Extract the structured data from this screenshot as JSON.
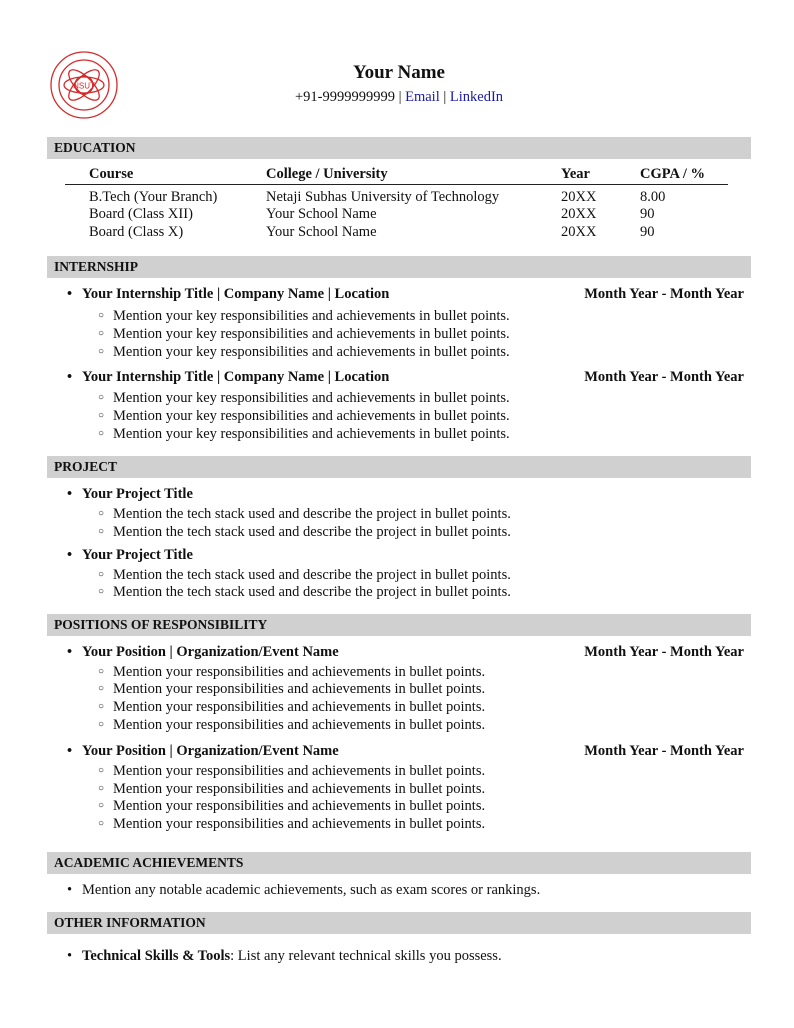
{
  "header": {
    "name": "Your Name",
    "phone": "+91-9999999999",
    "sep": "|",
    "email": "Email",
    "linkedin": "LinkedIn",
    "logo_text": "NSUT"
  },
  "education": {
    "title": "EDUCATION",
    "columns": [
      "Course",
      "College / University",
      "Year",
      "CGPA / %"
    ],
    "rows": [
      [
        "B.Tech (Your Branch)",
        "Netaji Subhas University of Technology",
        "20XX",
        "8.00"
      ],
      [
        "Board (Class XII)",
        "Your School Name",
        "20XX",
        "90"
      ],
      [
        "Board (Class X)",
        "Your School Name",
        "20XX",
        "90"
      ]
    ]
  },
  "internship": {
    "title": "INTERNSHIP",
    "items": [
      {
        "heading": "Your Internship Title | Company Name | Location",
        "date": "Month Year - Month Year",
        "points": [
          "Mention your key responsibilities and achievements in bullet points.",
          "Mention your key responsibilities and achievements in bullet points.",
          "Mention your key responsibilities and achievements in bullet points."
        ]
      },
      {
        "heading": "Your Internship Title | Company Name | Location",
        "date": "Month Year - Month Year",
        "points": [
          "Mention your key responsibilities and achievements in bullet points.",
          "Mention your key responsibilities and achievements in bullet points.",
          "Mention your key responsibilities and achievements in bullet points."
        ]
      }
    ]
  },
  "project": {
    "title": "PROJECT",
    "items": [
      {
        "heading": "Your Project Title",
        "points": [
          "Mention the tech stack used and describe the project in bullet points.",
          "Mention the tech stack used and describe the project in bullet points."
        ]
      },
      {
        "heading": "Your Project Title",
        "points": [
          "Mention the tech stack used and describe the project in bullet points.",
          "Mention the tech stack used and describe the project in bullet points."
        ]
      }
    ]
  },
  "por": {
    "title": "POSITIONS OF RESPONSIBILITY",
    "items": [
      {
        "heading": "Your Position | Organization/Event Name",
        "date": "Month Year - Month Year",
        "points": [
          "Mention your responsibilities and achievements in bullet points.",
          "Mention your responsibilities and achievements in bullet points.",
          "Mention your responsibilities and achievements in bullet points.",
          "Mention your responsibilities and achievements in bullet points."
        ]
      },
      {
        "heading": "Your Position | Organization/Event Name",
        "date": "Month Year - Month Year",
        "points": [
          "Mention your responsibilities and achievements in bullet points.",
          "Mention your responsibilities and achievements in bullet points.",
          "Mention your responsibilities and achievements in bullet points.",
          "Mention your responsibilities and achievements in bullet points."
        ]
      }
    ]
  },
  "academic": {
    "title": "ACADEMIC ACHIEVEMENTS",
    "points": [
      "Mention any notable academic achievements, such as exam scores or rankings."
    ]
  },
  "other": {
    "title": "OTHER INFORMATION",
    "label": "Technical Skills & Tools",
    "text": ": List any relevant technical skills you possess."
  }
}
